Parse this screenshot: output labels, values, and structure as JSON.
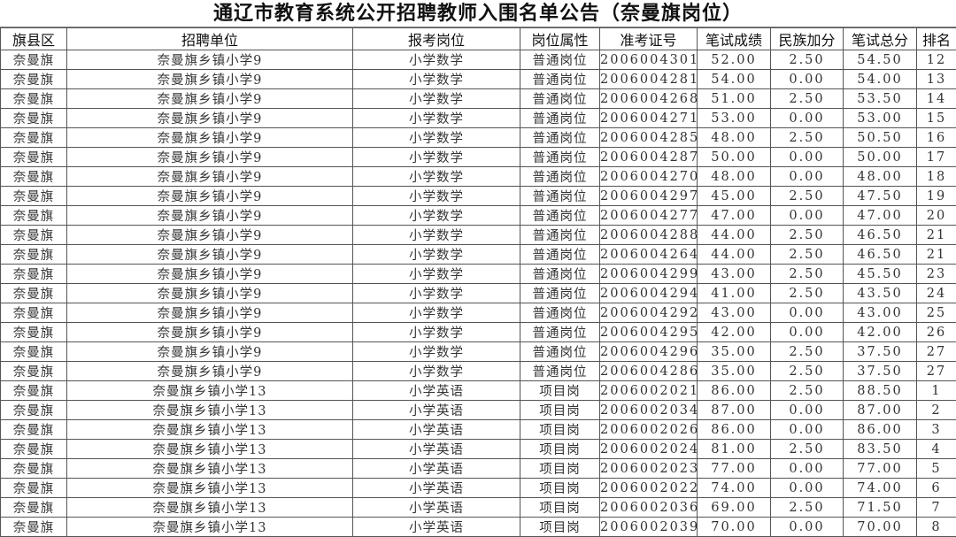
{
  "title": "通辽市教育系统公开招聘教师入围名单公告（奈曼旗岗位）",
  "columns": [
    "旗县区",
    "招聘单位",
    "报考岗位",
    "岗位属性",
    "准考证号",
    "笔试成绩",
    "民族加分",
    "笔试总分",
    "排名"
  ],
  "rows": [
    [
      "奈曼旗",
      "奈曼旗乡镇小学9",
      "小学数学",
      "普通岗位",
      "2006004301",
      "52.00",
      "2.50",
      "54.50",
      "12"
    ],
    [
      "奈曼旗",
      "奈曼旗乡镇小学9",
      "小学数学",
      "普通岗位",
      "2006004281",
      "54.00",
      "0.00",
      "54.00",
      "13"
    ],
    [
      "奈曼旗",
      "奈曼旗乡镇小学9",
      "小学数学",
      "普通岗位",
      "2006004268",
      "51.00",
      "2.50",
      "53.50",
      "14"
    ],
    [
      "奈曼旗",
      "奈曼旗乡镇小学9",
      "小学数学",
      "普通岗位",
      "2006004271",
      "53.00",
      "0.00",
      "53.00",
      "15"
    ],
    [
      "奈曼旗",
      "奈曼旗乡镇小学9",
      "小学数学",
      "普通岗位",
      "2006004285",
      "48.00",
      "2.50",
      "50.50",
      "16"
    ],
    [
      "奈曼旗",
      "奈曼旗乡镇小学9",
      "小学数学",
      "普通岗位",
      "2006004287",
      "50.00",
      "0.00",
      "50.00",
      "17"
    ],
    [
      "奈曼旗",
      "奈曼旗乡镇小学9",
      "小学数学",
      "普通岗位",
      "2006004270",
      "48.00",
      "0.00",
      "48.00",
      "18"
    ],
    [
      "奈曼旗",
      "奈曼旗乡镇小学9",
      "小学数学",
      "普通岗位",
      "2006004297",
      "45.00",
      "2.50",
      "47.50",
      "19"
    ],
    [
      "奈曼旗",
      "奈曼旗乡镇小学9",
      "小学数学",
      "普通岗位",
      "2006004277",
      "47.00",
      "0.00",
      "47.00",
      "20"
    ],
    [
      "奈曼旗",
      "奈曼旗乡镇小学9",
      "小学数学",
      "普通岗位",
      "2006004288",
      "44.00",
      "2.50",
      "46.50",
      "21"
    ],
    [
      "奈曼旗",
      "奈曼旗乡镇小学9",
      "小学数学",
      "普通岗位",
      "2006004264",
      "44.00",
      "2.50",
      "46.50",
      "21"
    ],
    [
      "奈曼旗",
      "奈曼旗乡镇小学9",
      "小学数学",
      "普通岗位",
      "2006004299",
      "43.00",
      "2.50",
      "45.50",
      "23"
    ],
    [
      "奈曼旗",
      "奈曼旗乡镇小学9",
      "小学数学",
      "普通岗位",
      "2006004294",
      "41.00",
      "2.50",
      "43.50",
      "24"
    ],
    [
      "奈曼旗",
      "奈曼旗乡镇小学9",
      "小学数学",
      "普通岗位",
      "2006004292",
      "43.00",
      "0.00",
      "43.00",
      "25"
    ],
    [
      "奈曼旗",
      "奈曼旗乡镇小学9",
      "小学数学",
      "普通岗位",
      "2006004295",
      "42.00",
      "0.00",
      "42.00",
      "26"
    ],
    [
      "奈曼旗",
      "奈曼旗乡镇小学9",
      "小学数学",
      "普通岗位",
      "2006004296",
      "35.00",
      "2.50",
      "37.50",
      "27"
    ],
    [
      "奈曼旗",
      "奈曼旗乡镇小学9",
      "小学数学",
      "普通岗位",
      "2006004286",
      "35.00",
      "2.50",
      "37.50",
      "27"
    ],
    [
      "奈曼旗",
      "奈曼旗乡镇小学13",
      "小学英语",
      "项目岗",
      "2006002021",
      "86.00",
      "2.50",
      "88.50",
      "1"
    ],
    [
      "奈曼旗",
      "奈曼旗乡镇小学13",
      "小学英语",
      "项目岗",
      "2006002034",
      "87.00",
      "0.00",
      "87.00",
      "2"
    ],
    [
      "奈曼旗",
      "奈曼旗乡镇小学13",
      "小学英语",
      "项目岗",
      "2006002026",
      "86.00",
      "0.00",
      "86.00",
      "3"
    ],
    [
      "奈曼旗",
      "奈曼旗乡镇小学13",
      "小学英语",
      "项目岗",
      "2006002024",
      "81.00",
      "2.50",
      "83.50",
      "4"
    ],
    [
      "奈曼旗",
      "奈曼旗乡镇小学13",
      "小学英语",
      "项目岗",
      "2006002023",
      "77.00",
      "0.00",
      "77.00",
      "5"
    ],
    [
      "奈曼旗",
      "奈曼旗乡镇小学13",
      "小学英语",
      "项目岗",
      "2006002022",
      "74.00",
      "0.00",
      "74.00",
      "6"
    ],
    [
      "奈曼旗",
      "奈曼旗乡镇小学13",
      "小学英语",
      "项目岗",
      "2006002036",
      "69.00",
      "2.50",
      "71.50",
      "7"
    ],
    [
      "奈曼旗",
      "奈曼旗乡镇小学13",
      "小学英语",
      "项目岗",
      "2006002039",
      "70.00",
      "0.00",
      "70.00",
      "8"
    ]
  ]
}
